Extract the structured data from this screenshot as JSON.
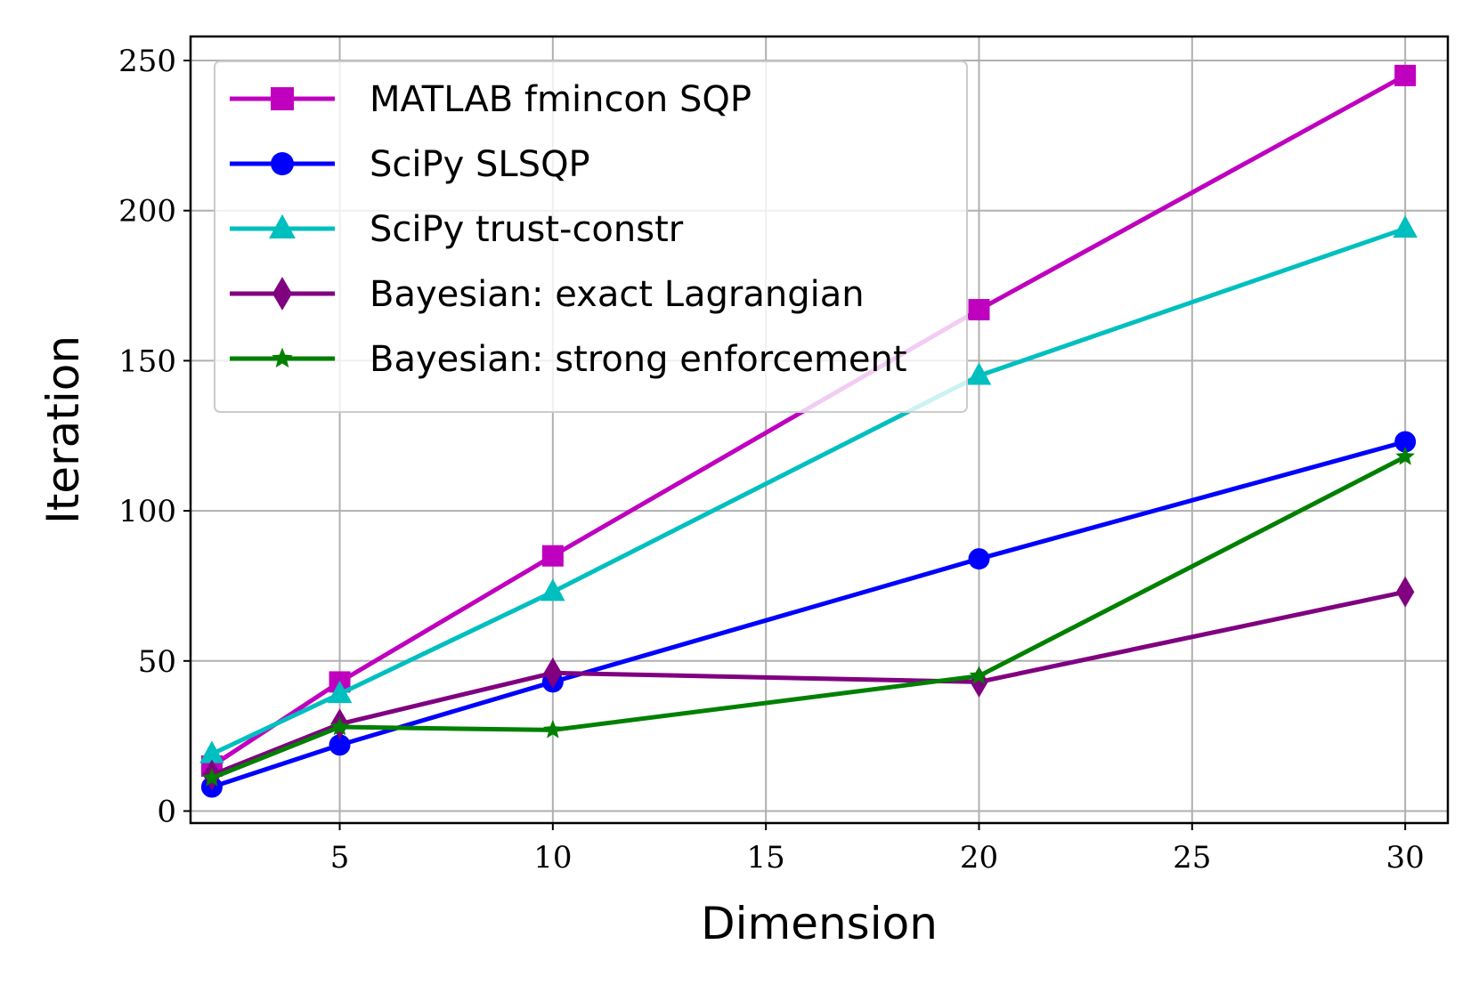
{
  "chart_data": {
    "type": "line",
    "title": "",
    "xlabel": "Dimension",
    "ylabel": "Iteration",
    "xlim": [
      1.5,
      31.0
    ],
    "ylim": [
      -4,
      258
    ],
    "xticks": [
      5,
      10,
      15,
      20,
      25,
      30
    ],
    "yticks": [
      0,
      50,
      100,
      150,
      200,
      250
    ],
    "grid": true,
    "legend_position": "top-left",
    "x": [
      2,
      5,
      10,
      20,
      30
    ],
    "series": [
      {
        "name": "MATLAB fmincon SQP",
        "color": "#bf00bf",
        "marker": "square",
        "values": [
          15,
          43,
          85,
          167,
          245
        ]
      },
      {
        "name": "SciPy SLSQP",
        "color": "#0000ff",
        "marker": "circle",
        "values": [
          8,
          22,
          43,
          84,
          123
        ]
      },
      {
        "name": "SciPy trust-constr",
        "color": "#00bfbf",
        "marker": "triangle",
        "values": [
          19,
          39,
          73,
          145,
          194
        ]
      },
      {
        "name": "Bayesian: exact Lagrangian",
        "color": "#800080",
        "marker": "diamond",
        "values": [
          12,
          29,
          46,
          43,
          73
        ]
      },
      {
        "name": "Bayesian: strong enforcement",
        "color": "#008000",
        "marker": "star",
        "values": [
          11,
          28,
          27,
          45,
          118
        ]
      }
    ]
  }
}
